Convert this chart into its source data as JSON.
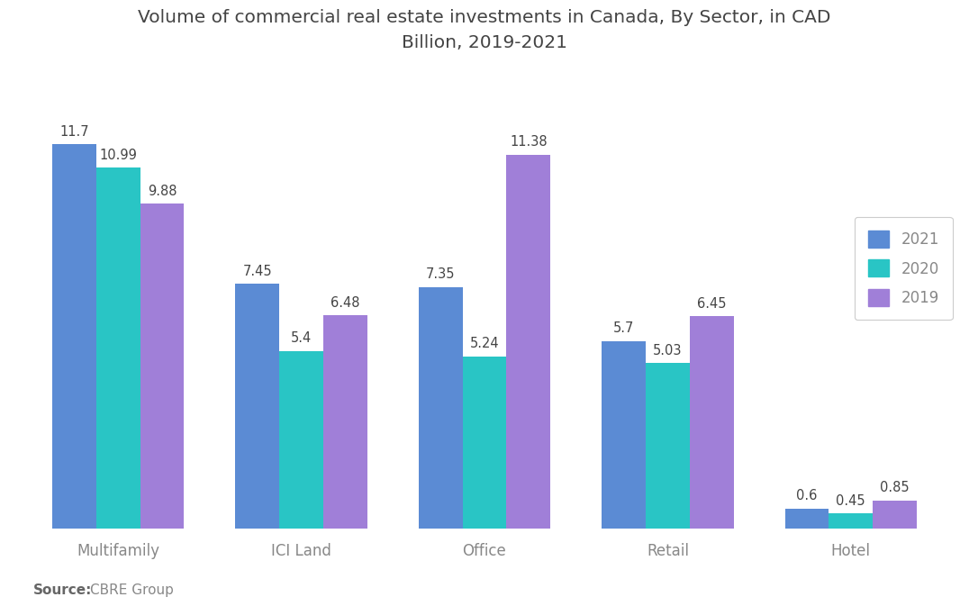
{
  "title": "Volume of commercial real estate investments in Canada, By Sector, in CAD\nBillion, 2019-2021",
  "categories": [
    "Multifamily",
    "ICI Land",
    "Office",
    "Retail",
    "Hotel"
  ],
  "series": {
    "2021": [
      11.7,
      7.45,
      7.35,
      5.7,
      0.6
    ],
    "2020": [
      10.99,
      5.4,
      5.24,
      5.03,
      0.45
    ],
    "2019": [
      9.88,
      6.48,
      11.38,
      6.45,
      0.85
    ]
  },
  "colors": {
    "2021": "#5B8BD4",
    "2020": "#29C5C5",
    "2019": "#A07FD8"
  },
  "ylim": [
    0,
    13.5
  ],
  "title_fontsize": 14.5,
  "tick_fontsize": 12,
  "bar_width": 0.24,
  "source_bold": "Source:",
  "source_rest": "  CBRE Group",
  "background_color": "#FFFFFF",
  "legend_labels": [
    "2021",
    "2020",
    "2019"
  ],
  "value_fontsize": 10.5,
  "value_color": "#444444",
  "label_color": "#888888",
  "title_color": "#444444"
}
